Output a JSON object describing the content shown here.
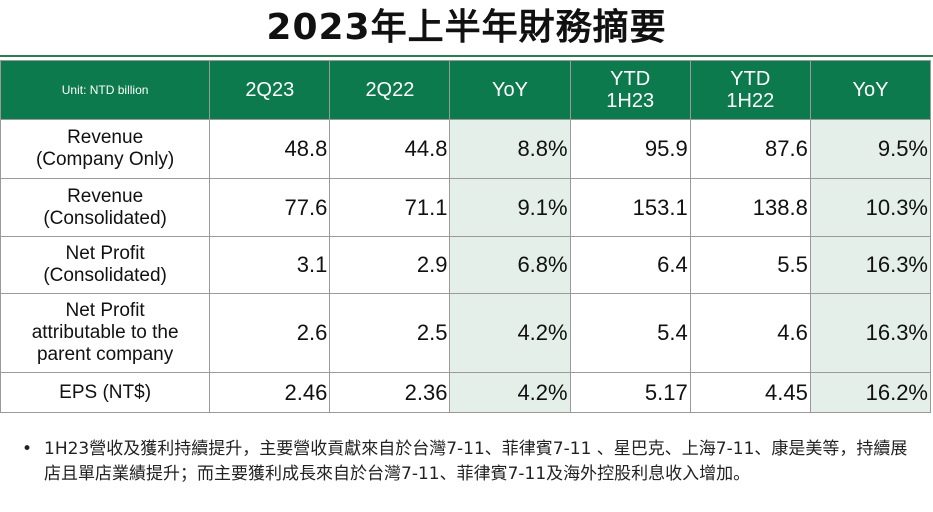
{
  "title": "2023年上半年財務摘要",
  "table": {
    "unit_label": "Unit: NTD billion",
    "columns": [
      "2Q23",
      "2Q22",
      "YoY",
      "YTD\n1H23",
      "YTD\n1H22",
      "YoY"
    ],
    "rows": [
      {
        "label": "Revenue\n(Company Only)",
        "values": [
          "48.8",
          "44.8",
          "8.8%",
          "95.9",
          "87.6",
          "9.5%"
        ]
      },
      {
        "label": "Revenue\n(Consolidated)",
        "values": [
          "77.6",
          "71.1",
          "9.1%",
          "153.1",
          "138.8",
          "10.3%"
        ]
      },
      {
        "label": "Net Profit\n(Consolidated)",
        "values": [
          "3.1",
          "2.9",
          "6.8%",
          "6.4",
          "5.5",
          "16.3%"
        ]
      },
      {
        "label": "Net Profit\nattributable to the\nparent company",
        "values": [
          "2.6",
          "2.5",
          "4.2%",
          "5.4",
          "4.6",
          "16.3%"
        ]
      },
      {
        "label": "EPS (NT$)",
        "values": [
          "2.46",
          "2.36",
          "4.2%",
          "5.17",
          "4.45",
          "16.2%"
        ]
      }
    ]
  },
  "note": {
    "bullet": "•",
    "text": "1H23營收及獲利持續提升，主要營收貢獻來自於台灣7-11、菲律賓7-11 、星巴克、上海7-11、康是美等，持續展店且單店業績提升；而主要獲利成長來自於台灣7-11、菲律賓7-11及海外控股利息收入增加。"
  },
  "colors": {
    "header_bg": "#0c7a4c",
    "yoy_bg": "#e3efe8"
  }
}
